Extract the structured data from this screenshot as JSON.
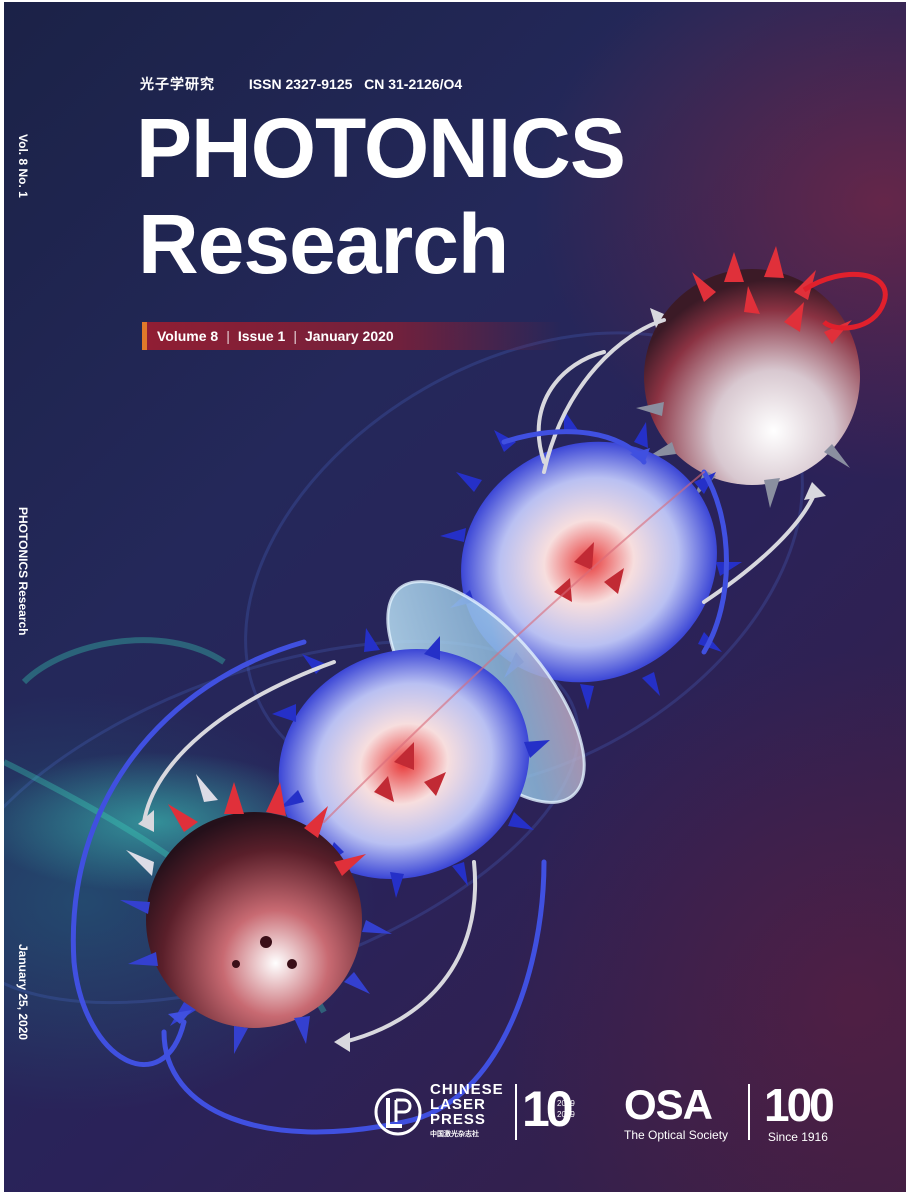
{
  "cover": {
    "chinese_title": "光子学研究",
    "issn": "ISSN 2327-9125",
    "cn": "CN 31-2126/O4",
    "title_line1": "PHOTONICS",
    "title_line2": "Research",
    "volume": "Volume 8",
    "issue": "Issue 1",
    "date": "January 2020",
    "spine_volume": "Vol. 8  No. 1",
    "spine_title": "PHOTONICS Research",
    "spine_date": "January 25, 2020"
  },
  "publisher": {
    "clp_line1": "CHINESE",
    "clp_line2": "LASER",
    "clp_line3": "PRESS",
    "clp_chinese": "中国激光杂志社",
    "anniversary": "10",
    "anniversary_years_start": "2009",
    "anniversary_years_end": "2019",
    "osa_name": "OSA",
    "osa_full": "The Optical Society",
    "centennial": "100",
    "centennial_since": "Since 1916"
  },
  "colors": {
    "background": "#23275a",
    "accent_bar": "#8f1e34",
    "accent_edge": "#e0792a",
    "arrow_blue": "#3344dd",
    "arrow_red": "#dd2233"
  }
}
